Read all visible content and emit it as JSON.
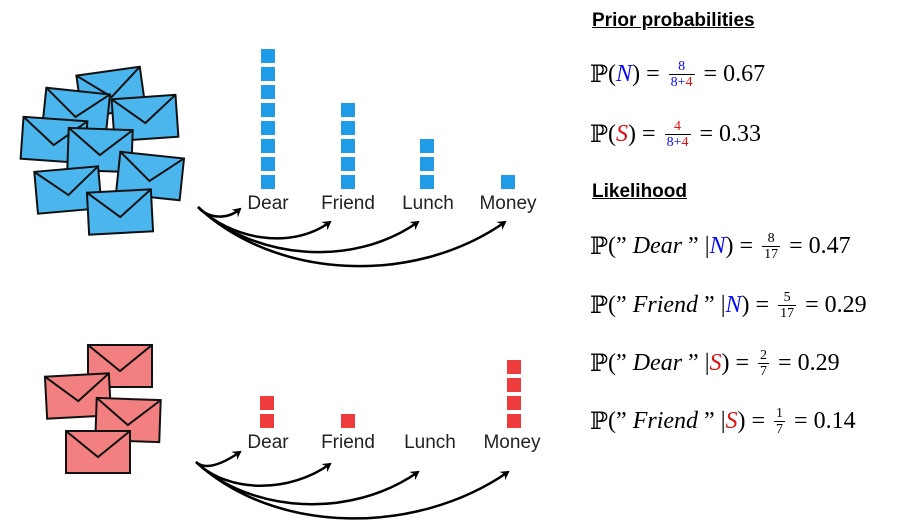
{
  "colors": {
    "normal": "#0a0af0",
    "spam": "#e01010",
    "normal_envelope": "#4bb6ee",
    "spam_envelope": "#f28080",
    "bar_normal": "#1f9be8",
    "bar_spam": "#ee3b3b"
  },
  "words": [
    "Dear",
    "Friend",
    "Lunch",
    "Money"
  ],
  "normal_counts": [
    8,
    5,
    3,
    1
  ],
  "spam_counts": [
    2,
    1,
    0,
    4
  ],
  "icons": {
    "normal_stack": "envelope-stack-icon",
    "spam_stack": "envelope-stack-icon",
    "arrows": "curved-arrow-icon"
  },
  "right_panel": {
    "prior_heading": "Prior probabilities",
    "likelihood_heading": "Likelihood",
    "prob_symbol": "ℙ",
    "class_N": "N",
    "class_S": "S",
    "prior_N": {
      "num": "8",
      "num_a": "8",
      "num_b": "4",
      "result": "0.67"
    },
    "prior_S": {
      "num": "4",
      "num_a": "8",
      "num_b": "4",
      "result": "0.33"
    },
    "lik_dear_N": {
      "word": "Dear",
      "num": "8",
      "den": "17",
      "result": "0.47"
    },
    "lik_friend_N": {
      "word": "Friend",
      "num": "5",
      "den": "17",
      "result": "0.29"
    },
    "lik_dear_S": {
      "word": "Dear",
      "num": "2",
      "den": "7",
      "result": "0.29"
    },
    "lik_friend_S": {
      "word": "Friend",
      "num": "1",
      "den": "7",
      "result": "0.14"
    }
  }
}
